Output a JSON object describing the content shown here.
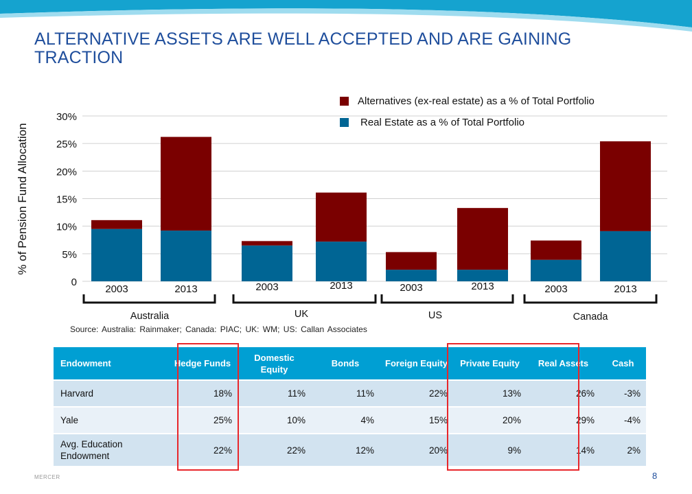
{
  "slide": {
    "title": "ALTERNATIVE ASSETS ARE WELL ACCEPTED AND ARE GAINING TRACTION",
    "source": "Source: Australia: Rainmaker;  Canada:  PIAC; UK: WM; US: Callan  Associates",
    "brand": "MERCER",
    "page_number": "8",
    "colors": {
      "title": "#1f4e9c",
      "band": "#15a3cf",
      "alternatives": "#7a0000",
      "real_estate": "#006594",
      "header": "#009fd3",
      "highlight": "#e8262a"
    }
  },
  "chart_data": {
    "type": "bar",
    "stacked": true,
    "ylabel": "% of Pension Fund Allocation",
    "ylim": [
      0,
      30
    ],
    "yticks": [
      "0",
      "5%",
      "10%",
      "15%",
      "20%",
      "25%",
      "30%"
    ],
    "grid": true,
    "legend_position": "top-right",
    "groups": [
      "Australia",
      "UK",
      "US",
      "Canada"
    ],
    "categories": [
      "2003",
      "2013",
      "2003",
      "2013",
      "2003",
      "2013",
      "2003",
      "2013"
    ],
    "series": [
      {
        "name": "Real Estate as a % of Total Portfolio",
        "color": "#006594",
        "values": [
          9.5,
          9.2,
          6.5,
          7.2,
          2.1,
          2.1,
          3.9,
          9.1
        ]
      },
      {
        "name": "Alternatives (ex-real estate) as a % of Total Portfolio",
        "color": "#7a0000",
        "values": [
          1.6,
          17.0,
          0.8,
          8.9,
          3.2,
          11.2,
          3.5,
          16.3
        ]
      }
    ]
  },
  "table": {
    "headers": [
      "Endowment",
      "Hedge Funds",
      "Domestic Equity",
      "Bonds",
      "Foreign Equity",
      "Private Equity",
      "Real Assets",
      "Cash"
    ],
    "rows": [
      [
        "Harvard",
        "18%",
        "11%",
        "11%",
        "22%",
        "13%",
        "26%",
        "-3%"
      ],
      [
        "Yale",
        "25%",
        "10%",
        "4%",
        "15%",
        "20%",
        "29%",
        "-4%"
      ],
      [
        "Avg. Education Endowment",
        "22%",
        "22%",
        "12%",
        "20%",
        "9%",
        "14%",
        "2%"
      ]
    ]
  }
}
